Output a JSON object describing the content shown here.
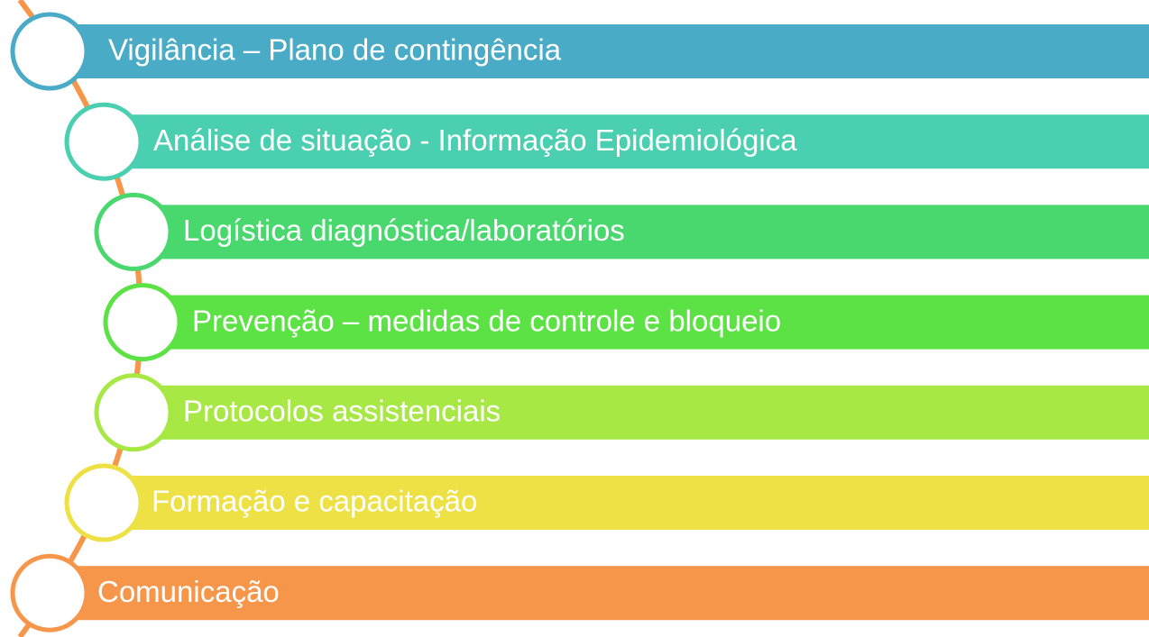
{
  "items": [
    {
      "label": "Vigilância – Plano de contingência",
      "color": "#4aabc6"
    },
    {
      "label": "Análise de situação - Informação Epidemiológica",
      "color": "#4acfb0"
    },
    {
      "label": "Logística diagnóstica/laboratórios",
      "color": "#48d86e"
    },
    {
      "label": "Prevenção – medidas de controle e bloqueio",
      "color": "#5ce245"
    },
    {
      "label": "Protocolos assistenciais",
      "color": "#a8e845"
    },
    {
      "label": "Formação e capacitação",
      "color": "#ede145"
    },
    {
      "label": "Comunicação",
      "color": "#f5964a"
    }
  ]
}
